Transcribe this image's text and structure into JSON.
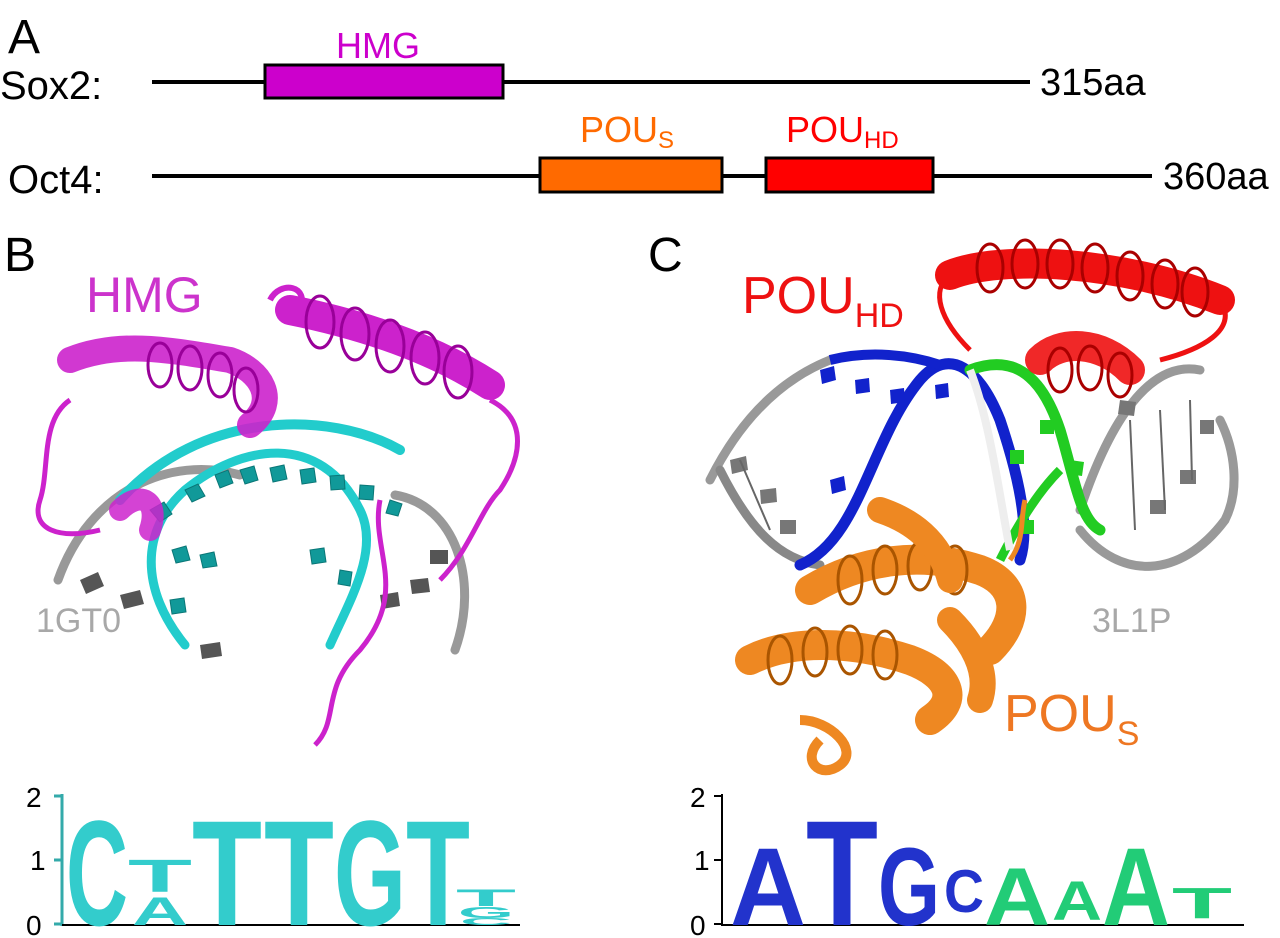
{
  "panel_a": {
    "letter": "A",
    "sox2": {
      "name": "Sox2:",
      "length": "315aa",
      "domain": "HMG",
      "domain_color": "#cc00cc"
    },
    "oct4": {
      "name": "Oct4:",
      "length": "360aa",
      "domain_s": {
        "main": "POU",
        "sub": "S",
        "color": "#ff6a00"
      },
      "domain_hd": {
        "main": "POU",
        "sub": "HD",
        "color": "#ff0000"
      }
    }
  },
  "panel_b": {
    "letter": "B",
    "title": "HMG",
    "title_color": "#cc33cc",
    "pdb": "1GT0",
    "logo": {
      "y_ticks": [
        "0",
        "1",
        "2"
      ],
      "letters": [
        "C",
        "T",
        "A",
        "T",
        "T",
        "G",
        "T",
        "T",
        "G",
        "C"
      ],
      "color": "#33cccc"
    }
  },
  "panel_c": {
    "letter": "C",
    "hd_label": {
      "main": "POU",
      "sub": "HD",
      "color": "#ee1111"
    },
    "s_label": {
      "main": "POU",
      "sub": "S",
      "color": "#ee7722"
    },
    "pdb": "3L1P",
    "logo": {
      "y_ticks": [
        "0",
        "1",
        "2"
      ],
      "letters": [
        "A",
        "T",
        "G",
        "C",
        "A",
        "A",
        "A",
        "T"
      ],
      "colors": {
        "blue": "#2233cc",
        "green": "#22cc77"
      }
    }
  }
}
